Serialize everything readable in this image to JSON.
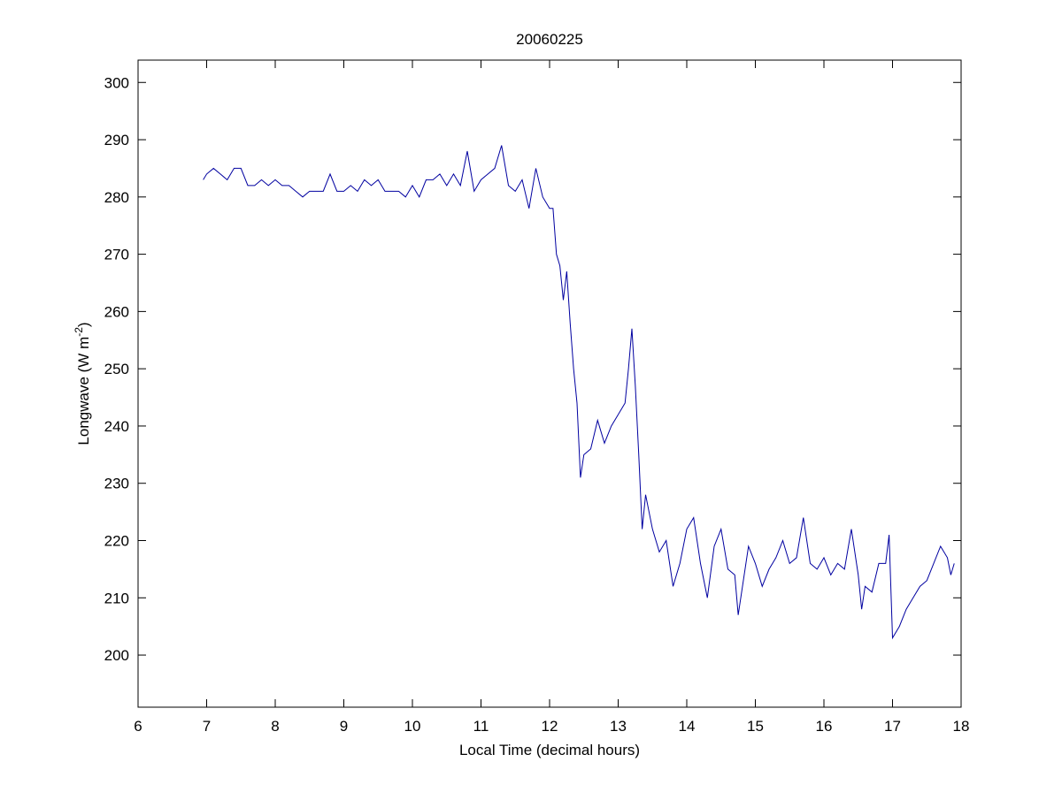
{
  "chart_data": {
    "type": "line",
    "title": "20060225",
    "xlabel": "Local Time (decimal hours)",
    "ylabel": "Longwave (W m",
    "ylabel_superscript": "-2",
    "ylabel_end": ")",
    "xlim": [
      6,
      18
    ],
    "xticks": [
      6,
      7,
      8,
      9,
      10,
      11,
      12,
      13,
      14,
      15,
      16,
      17,
      18
    ],
    "ylim": [
      190.9,
      303.9
    ],
    "yticks": [
      200,
      210,
      220,
      230,
      240,
      250,
      260,
      270,
      280,
      290,
      300
    ],
    "grid": false,
    "series": [
      {
        "color": "#0000a0",
        "x": [
          6.95,
          7.0,
          7.1,
          7.2,
          7.3,
          7.4,
          7.5,
          7.6,
          7.7,
          7.8,
          7.9,
          8.0,
          8.1,
          8.2,
          8.3,
          8.4,
          8.5,
          8.6,
          8.7,
          8.8,
          8.9,
          9.0,
          9.1,
          9.2,
          9.3,
          9.4,
          9.5,
          9.6,
          9.7,
          9.8,
          9.9,
          10.0,
          10.1,
          10.2,
          10.3,
          10.4,
          10.5,
          10.6,
          10.7,
          10.8,
          10.9,
          11.0,
          11.1,
          11.2,
          11.3,
          11.4,
          11.5,
          11.6,
          11.7,
          11.8,
          11.9,
          12.0,
          12.05,
          12.1,
          12.15,
          12.2,
          12.25,
          12.3,
          12.35,
          12.4,
          12.45,
          12.5,
          12.6,
          12.7,
          12.8,
          12.9,
          13.0,
          13.1,
          13.15,
          13.2,
          13.25,
          13.3,
          13.35,
          13.4,
          13.5,
          13.6,
          13.7,
          13.8,
          13.9,
          14.0,
          14.1,
          14.2,
          14.3,
          14.4,
          14.5,
          14.6,
          14.7,
          14.75,
          14.8,
          14.9,
          15.0,
          15.1,
          15.2,
          15.3,
          15.4,
          15.5,
          15.6,
          15.7,
          15.8,
          15.9,
          16.0,
          16.1,
          16.2,
          16.3,
          16.4,
          16.5,
          16.55,
          16.6,
          16.7,
          16.8,
          16.9,
          16.95,
          17.0,
          17.1,
          17.2,
          17.3,
          17.4,
          17.5,
          17.6,
          17.7,
          17.8,
          17.85,
          17.9
        ],
        "values": [
          283,
          284,
          285,
          284,
          283,
          285,
          285,
          282,
          282,
          283,
          282,
          283,
          282,
          282,
          281,
          280,
          281,
          281,
          281,
          284,
          281,
          281,
          282,
          281,
          283,
          282,
          283,
          281,
          281,
          281,
          280,
          282,
          280,
          283,
          283,
          284,
          282,
          284,
          282,
          288,
          281,
          283,
          284,
          285,
          289,
          282,
          281,
          283,
          278,
          285,
          280,
          278,
          278,
          270,
          268,
          262,
          267,
          258,
          250,
          244,
          231,
          235,
          236,
          241,
          237,
          240,
          242,
          244,
          250,
          257,
          247,
          235,
          222,
          228,
          222,
          218,
          220,
          212,
          216,
          222,
          224,
          216,
          210,
          219,
          222,
          215,
          214,
          207,
          211,
          219,
          216,
          212,
          215,
          217,
          220,
          216,
          217,
          224,
          216,
          215,
          217,
          214,
          216,
          215,
          222,
          214,
          208,
          212,
          211,
          216,
          216,
          221,
          203,
          205,
          208,
          210,
          212,
          213,
          216,
          219,
          217,
          214,
          216
        ]
      }
    ]
  }
}
